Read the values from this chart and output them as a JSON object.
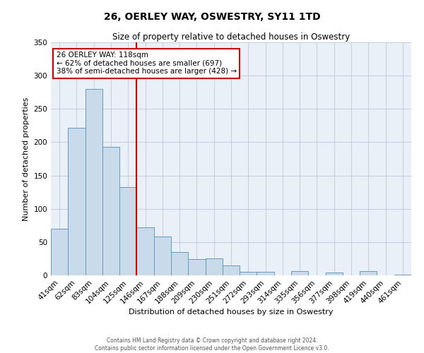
{
  "title": "26, OERLEY WAY, OSWESTRY, SY11 1TD",
  "subtitle": "Size of property relative to detached houses in Oswestry",
  "xlabel": "Distribution of detached houses by size in Oswestry",
  "ylabel": "Number of detached properties",
  "bar_color": "#c9daea",
  "bar_edge_color": "#6699bb",
  "background_color": "#eaf0f8",
  "categories": [
    "41sqm",
    "62sqm",
    "83sqm",
    "104sqm",
    "125sqm",
    "146sqm",
    "167sqm",
    "188sqm",
    "209sqm",
    "230sqm",
    "251sqm",
    "272sqm",
    "293sqm",
    "314sqm",
    "335sqm",
    "356sqm",
    "377sqm",
    "398sqm",
    "419sqm",
    "440sqm",
    "461sqm"
  ],
  "values": [
    70,
    222,
    280,
    193,
    133,
    72,
    58,
    35,
    24,
    25,
    15,
    5,
    5,
    0,
    6,
    0,
    4,
    0,
    6,
    0,
    1
  ],
  "ylim": [
    0,
    350
  ],
  "yticks": [
    0,
    50,
    100,
    150,
    200,
    250,
    300,
    350
  ],
  "vline_position": 4.5,
  "vline_color": "#cc0000",
  "annotation_title": "26 OERLEY WAY: 118sqm",
  "annotation_line1": "← 62% of detached houses are smaller (697)",
  "annotation_line2": "38% of semi-detached houses are larger (428) →",
  "annotation_box_color": "#ffffff",
  "annotation_box_edge_color": "#cc0000",
  "footer_line1": "Contains HM Land Registry data © Crown copyright and database right 2024.",
  "footer_line2": "Contains public sector information licensed under the Open Government Licence v3.0."
}
